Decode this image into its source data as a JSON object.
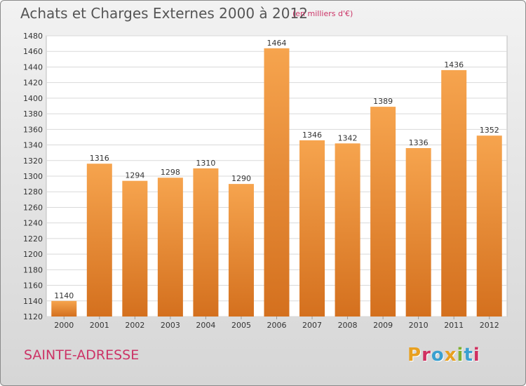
{
  "header": {
    "title": "Achats et Charges Externes 2000 à 2012",
    "subtitle": "(en milliers d'€)"
  },
  "footer": {
    "city": "SAINTE-ADRESSE",
    "logo_text": "Proxiti",
    "logo_colors": [
      "#e8a020",
      "#d03060",
      "#3aa0d0",
      "#e8a020",
      "#80b030",
      "#3aa0d0",
      "#d03060"
    ]
  },
  "colors": {
    "bar_top": "#f6a44e",
    "bar_bottom": "#d4701e",
    "accent": "#cc3366"
  },
  "chart_data": {
    "type": "bar",
    "categories": [
      "2000",
      "2001",
      "2002",
      "2003",
      "2004",
      "2005",
      "2006",
      "2007",
      "2008",
      "2009",
      "2010",
      "2011",
      "2012"
    ],
    "values": [
      1140,
      1316,
      1294,
      1298,
      1310,
      1290,
      1464,
      1346,
      1342,
      1389,
      1336,
      1436,
      1352
    ],
    "ylim": [
      1120,
      1480
    ],
    "yticks": [
      1120,
      1140,
      1160,
      1180,
      1200,
      1220,
      1240,
      1260,
      1280,
      1300,
      1320,
      1340,
      1360,
      1380,
      1400,
      1420,
      1440,
      1460,
      1480
    ],
    "grid": true,
    "data_labels": true
  }
}
